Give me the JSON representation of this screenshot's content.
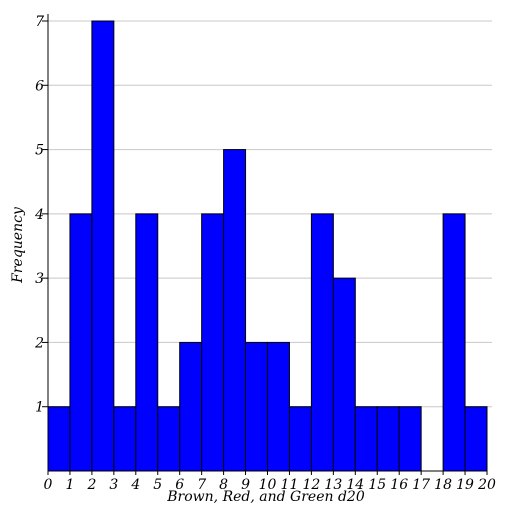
{
  "chart_data": {
    "type": "bar",
    "title": "",
    "xlabel": "Brown, Red, and Green d20",
    "ylabel": "Frequency",
    "bin_edges": [
      0,
      1,
      2,
      3,
      4,
      5,
      6,
      7,
      8,
      9,
      10,
      11,
      12,
      13,
      14,
      15,
      16,
      17,
      18,
      19,
      20
    ],
    "x_tick_labels": [
      "0",
      "1",
      "2",
      "3",
      "4",
      "5",
      "6",
      "7",
      "8",
      "9",
      "10",
      "11",
      "12",
      "13",
      "14",
      "15",
      "16",
      "17",
      "18",
      "19",
      "20"
    ],
    "values": [
      1,
      4,
      7,
      1,
      4,
      1,
      2,
      4,
      5,
      2,
      2,
      1,
      4,
      3,
      1,
      1,
      1,
      0,
      4,
      1
    ],
    "y_tick_labels": [
      "1",
      "2",
      "3",
      "4",
      "5",
      "6",
      "7"
    ],
    "xlim": [
      0,
      20
    ],
    "ylim": [
      0,
      7
    ],
    "grid": true,
    "colors": {
      "bar_fill": "#0000ff",
      "bar_stroke": "#000000",
      "grid": "#c8c8c8"
    }
  }
}
